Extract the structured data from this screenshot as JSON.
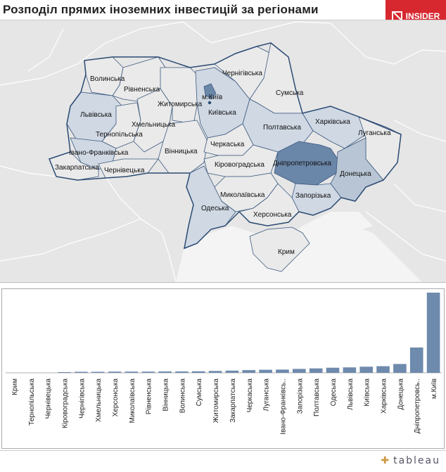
{
  "title": "Розподіл прямих іноземних інвестицій за  регіонами",
  "logo": {
    "text": "INSIDER"
  },
  "footer": {
    "brand": "tableau"
  },
  "colors": {
    "dark": "#6a86a8",
    "mid": "#b8c5d4",
    "light": "#cfd8e3",
    "empty": "#eaeaea",
    "bar": "#6e8aad"
  },
  "map": {
    "regions": [
      {
        "id": "volyn",
        "label": "Волинська",
        "tier": "empty"
      },
      {
        "id": "rivne",
        "label": "Рівненська",
        "tier": "empty"
      },
      {
        "id": "lviv",
        "label": "Львівська",
        "tier": "light"
      },
      {
        "id": "ternopil",
        "label": "Тернопільська",
        "tier": "empty"
      },
      {
        "id": "khmelnytskyi",
        "label": "Хмельницька",
        "tier": "empty"
      },
      {
        "id": "zhytomyr",
        "label": "Житомирська",
        "tier": "empty"
      },
      {
        "id": "vinnytsia",
        "label": "Вінницька",
        "tier": "empty"
      },
      {
        "id": "ivanofr",
        "label": "Івано-Франківська",
        "tier": "light"
      },
      {
        "id": "zakarpattia",
        "label": "Закарпатська",
        "tier": "empty"
      },
      {
        "id": "chernivtsi",
        "label": "Чернівецька",
        "tier": "empty"
      },
      {
        "id": "kyivobl",
        "label": "Київська",
        "tier": "light"
      },
      {
        "id": "kyivcity",
        "label": "м.Київ",
        "tier": "dark"
      },
      {
        "id": "chernihiv",
        "label": "Чернігівська",
        "tier": "empty"
      },
      {
        "id": "sumy",
        "label": "Сумська",
        "tier": "empty"
      },
      {
        "id": "poltava",
        "label": "Полтавська",
        "tier": "light"
      },
      {
        "id": "kharkiv",
        "label": "Харківська",
        "tier": "light"
      },
      {
        "id": "luhansk",
        "label": "Луганська",
        "tier": "empty"
      },
      {
        "id": "cherkasy",
        "label": "Черкаська",
        "tier": "empty"
      },
      {
        "id": "kirovohrad",
        "label": "Кіровоградська",
        "tier": "empty"
      },
      {
        "id": "dnipro",
        "label": "Дніпропетровська",
        "tier": "dark"
      },
      {
        "id": "donetsk",
        "label": "Донецька",
        "tier": "mid"
      },
      {
        "id": "zaporizhzhia",
        "label": "Запорізька",
        "tier": "light"
      },
      {
        "id": "mykolaiv",
        "label": "Миколаївська",
        "tier": "empty"
      },
      {
        "id": "odesa",
        "label": "Одеська",
        "tier": "light"
      },
      {
        "id": "kherson",
        "label": "Херсонська",
        "tier": "empty"
      },
      {
        "id": "crimea",
        "label": "Крим",
        "tier": "empty"
      }
    ]
  },
  "chart_data": {
    "type": "bar",
    "categories": [
      "Крим",
      "Тернопільська",
      "Чернівецька",
      "Кіровоградська",
      "Чернігівська",
      "Хмельницька",
      "Херсонська",
      "Миколаївська",
      "Рівненська",
      "Вінницька",
      "Волинська",
      "Сумська",
      "Житомирська",
      "Закарпатська",
      "Черкаська",
      "Луганська",
      "Івано-Франківсь..",
      "Запорізька",
      "Полтавська",
      "Одеська",
      "Львівська",
      "Київська",
      "Харківська",
      "Донецька",
      "Дніпропетровсь..",
      "м.Київ"
    ],
    "values": [
      0,
      0,
      0,
      0.1,
      0.6,
      0.6,
      0.7,
      0.7,
      0.7,
      0.8,
      0.8,
      0.9,
      1.1,
      1.3,
      1.6,
      1.8,
      1.9,
      2.3,
      2.6,
      3.0,
      3.2,
      3.6,
      3.9,
      5.2,
      14.9,
      47.2
    ],
    "ylim": [
      0,
      47.2
    ],
    "grid": false,
    "legend": "none"
  }
}
